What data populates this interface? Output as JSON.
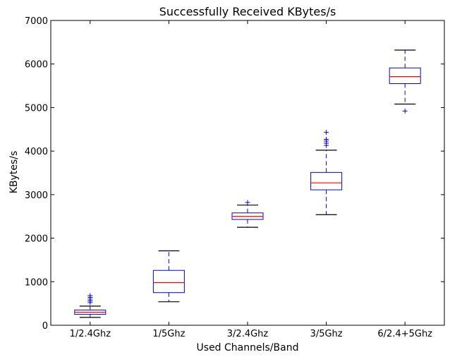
{
  "chart_data": {
    "type": "box",
    "title": "Successfully Received KBytes/s",
    "xlabel": "Used Channels/Band",
    "ylabel": "KBytes/s",
    "ylim": [
      0,
      7000
    ],
    "yticks": [
      0,
      1000,
      2000,
      3000,
      4000,
      5000,
      6000,
      7000
    ],
    "grid": false,
    "colors": {
      "box": "#0000ff",
      "median": "#ff0000",
      "whisker": "#0000ff",
      "cap": "#000000",
      "outlier": "#0000ff",
      "axes": "#000000"
    },
    "categories": [
      "1/2.4Ghz",
      "1/5Ghz",
      "3/2.4Ghz",
      "3/5Ghz",
      "6/2.4+5Ghz"
    ],
    "boxes": [
      {
        "category": "1/2.4Ghz",
        "whisker_low": 180,
        "q1": 250,
        "median": 300,
        "q3": 350,
        "whisker_high": 440,
        "outliers": [
          520,
          560,
          600,
          640,
          680
        ]
      },
      {
        "category": "1/5Ghz",
        "whisker_low": 540,
        "q1": 750,
        "median": 980,
        "q3": 1260,
        "whisker_high": 1710,
        "outliers": []
      },
      {
        "category": "3/2.4Ghz",
        "whisker_low": 2250,
        "q1": 2430,
        "median": 2500,
        "q3": 2580,
        "whisker_high": 2760,
        "outliers": [
          2820
        ]
      },
      {
        "category": "3/5Ghz",
        "whisker_low": 2540,
        "q1": 3110,
        "median": 3270,
        "q3": 3510,
        "whisker_high": 4020,
        "outliers": [
          4130,
          4180,
          4230,
          4270,
          4430
        ]
      },
      {
        "category": "6/2.4+5Ghz",
        "whisker_low": 5080,
        "q1": 5550,
        "median": 5710,
        "q3": 5910,
        "whisker_high": 6320,
        "outliers": [
          4920
        ]
      }
    ]
  }
}
